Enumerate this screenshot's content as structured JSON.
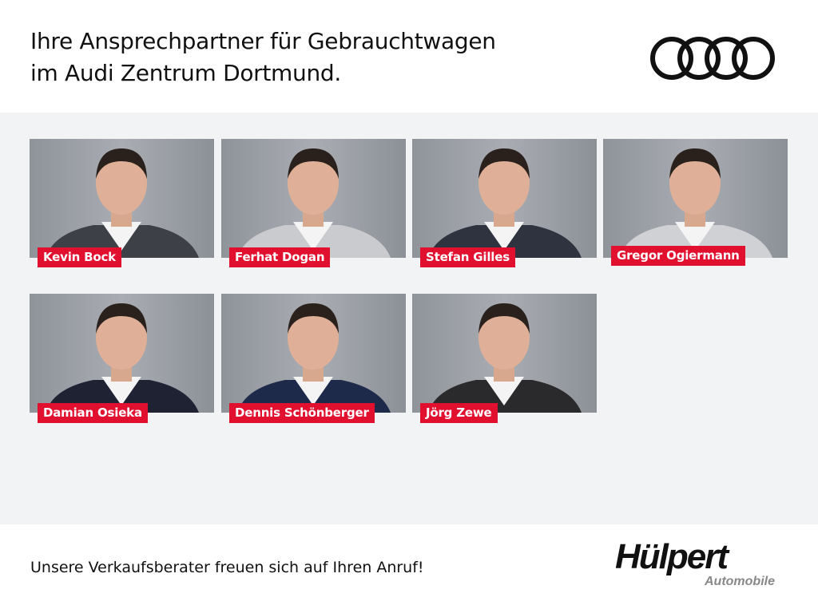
{
  "header": {
    "title_line1": "Ihre Ansprechpartner für Gebrauchtwagen",
    "title_line2": "im Audi Zentrum Dortmund.",
    "brand_logo": "Audi four rings"
  },
  "contacts": [
    {
      "name": "Kevin Bock",
      "suit": "#3d4046"
    },
    {
      "name": "Ferhat Dogan",
      "suit": "#c9cbce"
    },
    {
      "name": "Stefan Gilles",
      "suit": "#2f3340"
    },
    {
      "name": "Gregor Ogiermann",
      "suit": "#cfd1d4"
    },
    {
      "name": "Damian Osieka",
      "suit": "#1f2233"
    },
    {
      "name": "Dennis Schönberger",
      "suit": "#1e2a4a"
    },
    {
      "name": "Jörg Zewe",
      "suit": "#2a2a2c"
    }
  ],
  "footer": {
    "slogan": "Unsere Verkaufsberater freuen sich auf Ihren Anruf!",
    "logo_main": "Hülpert",
    "logo_sub": "Automobile"
  },
  "colors": {
    "label_bg": "#e2102f",
    "panel_bg": "#f2f3f5"
  }
}
